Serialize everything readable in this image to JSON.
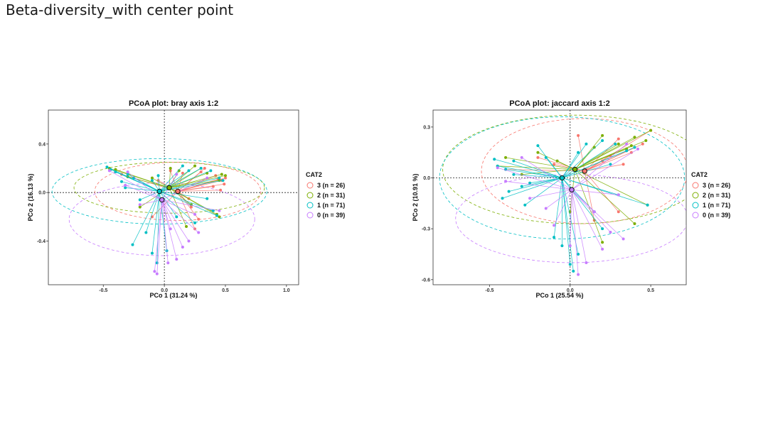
{
  "page": {
    "title": "Beta-diversity_with center point"
  },
  "chart_data": [
    {
      "type": "scatter",
      "title": "PCoA plot: bray axis 1:2",
      "xlabel": "PCo 1 (31.24 %)",
      "ylabel": "PCo 2 (16.13 %)",
      "xlim": [
        -0.95,
        1.1
      ],
      "ylim": [
        -0.76,
        0.68
      ],
      "xticks": [
        {
          "v": -0.5,
          "label": "-0.5"
        },
        {
          "v": 0,
          "label": "0.0"
        },
        {
          "v": 0.5,
          "label": "0.5"
        },
        {
          "v": 1.0,
          "label": "1.0"
        }
      ],
      "yticks": [
        {
          "v": 0.4,
          "label": "0.4"
        },
        {
          "v": 0,
          "label": "0.0"
        },
        {
          "v": -0.4,
          "label": "-0.4"
        }
      ],
      "legend": {
        "title": "CAT2",
        "position": "right",
        "entries": [
          {
            "label": "3 (n = 26)",
            "color": "#F8766D"
          },
          {
            "label": "2 (n = 31)",
            "color": "#7CAE00"
          },
          {
            "label": "1 (n = 71)",
            "color": "#00BFC4"
          },
          {
            "label": "0 (n = 39)",
            "color": "#C77CFF"
          }
        ]
      },
      "groups": [
        {
          "color": "#F8766D",
          "centroid": [
            0.11,
            0.01
          ],
          "ellipse": {
            "rx": 0.68,
            "ry": 0.24
          },
          "points": [
            [
              0.5,
              0.12
            ],
            [
              0.47,
              0.1
            ],
            [
              0.49,
              0.07
            ],
            [
              0.44,
              0.11
            ],
            [
              0.4,
              0.05
            ],
            [
              0.46,
              0.02
            ],
            [
              0.3,
              0.17
            ],
            [
              0.22,
              -0.12
            ],
            [
              0.28,
              -0.22
            ],
            [
              0.25,
              -0.3
            ],
            [
              0.05,
              0.18
            ],
            [
              -0.1,
              -0.2
            ],
            [
              -0.35,
              0.15
            ],
            [
              0.33,
              0.2
            ],
            [
              0.42,
              0.14
            ],
            [
              0.15,
              0.16
            ],
            [
              -0.05,
              0.1
            ],
            [
              0.2,
              -0.05
            ]
          ]
        },
        {
          "color": "#7CAE00",
          "centroid": [
            0.04,
            0.04
          ],
          "ellipse": {
            "rx": 0.78,
            "ry": 0.21
          },
          "points": [
            [
              0.5,
              0.14
            ],
            [
              0.47,
              0.15
            ],
            [
              0.45,
              0.1
            ],
            [
              0.43,
              -0.18
            ],
            [
              0.45,
              -0.2
            ],
            [
              0.25,
              0.22
            ],
            [
              0.3,
              0.2
            ],
            [
              0.05,
              0.2
            ],
            [
              -0.4,
              0.19
            ],
            [
              -0.45,
              0.2
            ],
            [
              -0.3,
              0.13
            ],
            [
              -0.1,
              0.12
            ],
            [
              0.18,
              -0.28
            ],
            [
              0.22,
              -0.1
            ],
            [
              -0.2,
              -0.12
            ],
            [
              0.12,
              0.18
            ],
            [
              0.35,
              0.16
            ]
          ]
        },
        {
          "color": "#00BFC4",
          "centroid": [
            -0.04,
            0.01
          ],
          "ellipse": {
            "rx": 0.88,
            "ry": 0.27
          },
          "points": [
            [
              -0.47,
              0.21
            ],
            [
              -0.44,
              0.19
            ],
            [
              -0.4,
              0.17
            ],
            [
              -0.3,
              0.15
            ],
            [
              -0.25,
              0.12
            ],
            [
              -0.1,
              0.1
            ],
            [
              0.2,
              0.18
            ],
            [
              0.3,
              0.2
            ],
            [
              0.38,
              0.18
            ],
            [
              0.45,
              0.12
            ],
            [
              0.48,
              0.1
            ],
            [
              0.43,
              -0.19
            ],
            [
              0.4,
              -0.15
            ],
            [
              -0.15,
              -0.33
            ],
            [
              -0.26,
              -0.43
            ],
            [
              -0.1,
              -0.5
            ],
            [
              -0.06,
              -0.58
            ],
            [
              0.02,
              -0.48
            ],
            [
              0.25,
              -0.25
            ],
            [
              -0.2,
              -0.06
            ],
            [
              -0.35,
              0.09
            ],
            [
              0.1,
              -0.2
            ],
            [
              0.15,
              0.22
            ],
            [
              -0.05,
              0.14
            ],
            [
              0.35,
              -0.05
            ],
            [
              -0.32,
              0.04
            ]
          ]
        },
        {
          "color": "#C77CFF",
          "centroid": [
            -0.02,
            -0.06
          ],
          "ellipse": {
            "rx": 0.76,
            "ry": 0.3,
            "dy": -0.16
          },
          "points": [
            [
              -0.08,
              -0.65
            ],
            [
              -0.06,
              -0.67
            ],
            [
              0.03,
              -0.58
            ],
            [
              0.1,
              -0.55
            ],
            [
              0.15,
              -0.45
            ],
            [
              0.2,
              -0.4
            ],
            [
              0.28,
              -0.33
            ],
            [
              0.45,
              -0.15
            ],
            [
              0.35,
              0.12
            ],
            [
              0.1,
              0.15
            ],
            [
              -0.3,
              0.17
            ],
            [
              -0.45,
              0.18
            ],
            [
              -0.2,
              -0.1
            ],
            [
              -0.32,
              0.06
            ],
            [
              0.05,
              -0.3
            ],
            [
              0.25,
              -0.18
            ]
          ]
        }
      ]
    },
    {
      "type": "scatter",
      "title": "PCoA plot: jaccard axis 1:2",
      "xlabel": "PCo 1 (25.54 %)",
      "ylabel": "PCo 2 (10.91 %)",
      "xlim": [
        -0.85,
        0.72
      ],
      "ylim": [
        -0.63,
        0.4
      ],
      "xticks": [
        {
          "v": -0.5,
          "label": "-0.5"
        },
        {
          "v": 0,
          "label": "0.0"
        },
        {
          "v": 0.5,
          "label": "0.5"
        }
      ],
      "yticks": [
        {
          "v": 0.3,
          "label": "0.3"
        },
        {
          "v": 0,
          "label": "0.0"
        },
        {
          "v": -0.3,
          "label": "-0.3"
        },
        {
          "v": -0.6,
          "label": "-0.6"
        }
      ],
      "legend": {
        "title": "CAT2",
        "position": "right",
        "entries": [
          {
            "label": "3 (n = 26)",
            "color": "#F8766D"
          },
          {
            "label": "2 (n = 31)",
            "color": "#7CAE00"
          },
          {
            "label": "1 (n = 71)",
            "color": "#00BFC4"
          },
          {
            "label": "0 (n = 39)",
            "color": "#C77CFF"
          }
        ]
      },
      "groups": [
        {
          "color": "#F8766D",
          "centroid": [
            0.09,
            0.04
          ],
          "ellipse": {
            "rx": 0.64,
            "ry": 0.31
          },
          "points": [
            [
              0.5,
              0.28
            ],
            [
              0.45,
              0.2
            ],
            [
              0.4,
              0.18
            ],
            [
              0.3,
              0.23
            ],
            [
              0.25,
              0.13
            ],
            [
              0.2,
              0.1
            ],
            [
              0.33,
              0.08
            ],
            [
              -0.2,
              0.12
            ],
            [
              -0.4,
              0.05
            ],
            [
              0.15,
              -0.25
            ],
            [
              0.3,
              -0.2
            ],
            [
              0.05,
              0.25
            ],
            [
              0.38,
              0.15
            ],
            [
              0.1,
              0.05
            ],
            [
              -0.1,
              0.08
            ]
          ]
        },
        {
          "color": "#7CAE00",
          "centroid": [
            0.03,
            0.05
          ],
          "ellipse": {
            "rx": 0.82,
            "ry": 0.32
          },
          "points": [
            [
              0.5,
              0.28
            ],
            [
              0.47,
              0.22
            ],
            [
              0.4,
              0.24
            ],
            [
              0.38,
              0.19
            ],
            [
              0.48,
              -0.16
            ],
            [
              0.4,
              -0.27
            ],
            [
              0.2,
              -0.38
            ],
            [
              0.3,
              0.2
            ],
            [
              0.2,
              0.25
            ],
            [
              -0.08,
              0.1
            ],
            [
              -0.4,
              0.12
            ],
            [
              -0.45,
              0.07
            ],
            [
              -0.2,
              0.15
            ],
            [
              0.0,
              -0.2
            ],
            [
              0.15,
              0.18
            ],
            [
              0.35,
              0.17
            ],
            [
              -0.3,
              0.02
            ]
          ]
        },
        {
          "color": "#00BFC4",
          "centroid": [
            -0.05,
            0.0
          ],
          "ellipse": {
            "rx": 0.76,
            "ry": 0.36
          },
          "points": [
            [
              -0.47,
              0.11
            ],
            [
              -0.45,
              0.07
            ],
            [
              -0.4,
              0.05
            ],
            [
              -0.35,
              0.02
            ],
            [
              -0.3,
              -0.05
            ],
            [
              -0.25,
              -0.03
            ],
            [
              -0.42,
              -0.12
            ],
            [
              -0.2,
              0.19
            ],
            [
              0.1,
              0.2
            ],
            [
              0.2,
              0.22
            ],
            [
              0.28,
              0.2
            ],
            [
              0.35,
              0.16
            ],
            [
              0.4,
              0.18
            ],
            [
              0.48,
              -0.16
            ],
            [
              0.3,
              -0.1
            ],
            [
              0.05,
              -0.45
            ],
            [
              0.02,
              -0.55
            ],
            [
              0.0,
              -0.51
            ],
            [
              -0.05,
              -0.4
            ],
            [
              -0.1,
              -0.35
            ],
            [
              -0.28,
              -0.16
            ],
            [
              -0.38,
              -0.08
            ],
            [
              0.15,
              -0.2
            ],
            [
              0.25,
              0.08
            ],
            [
              -0.15,
              0.12
            ],
            [
              0.05,
              0.15
            ],
            [
              -0.35,
              0.1
            ],
            [
              0.2,
              -0.3
            ]
          ]
        },
        {
          "color": "#C77CFF",
          "centroid": [
            0.01,
            -0.07
          ],
          "ellipse": {
            "rx": 0.72,
            "ry": 0.26,
            "dy": -0.17
          },
          "points": [
            [
              0.05,
              -0.57
            ],
            [
              0.1,
              -0.5
            ],
            [
              0.2,
              -0.42
            ],
            [
              0.33,
              -0.36
            ],
            [
              0.25,
              -0.32
            ],
            [
              0.0,
              -0.4
            ],
            [
              -0.1,
              -0.28
            ],
            [
              -0.25,
              -0.12
            ],
            [
              -0.4,
              -0.02
            ],
            [
              -0.45,
              0.06
            ],
            [
              -0.3,
              0.12
            ],
            [
              0.35,
              0.2
            ],
            [
              0.42,
              0.17
            ],
            [
              0.3,
              -0.1
            ],
            [
              0.15,
              -0.2
            ],
            [
              -0.15,
              -0.18
            ]
          ]
        }
      ]
    }
  ]
}
